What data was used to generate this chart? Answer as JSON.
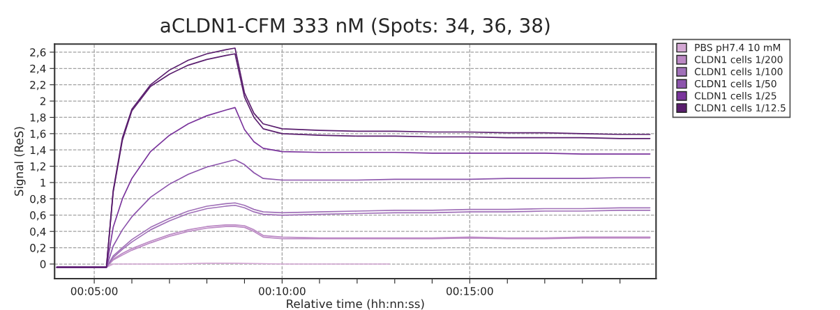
{
  "chart_data": {
    "type": "line",
    "title": "aCLDN1-CFM 333 nM (Spots: 34, 36, 38)",
    "xlabel": "Relative time (hh:nn:ss)",
    "ylabel": "Signal (ReS)",
    "x": [
      0.0667,
      0.0833,
      0.0887,
      0.0917,
      0.0958,
      0.1,
      0.1083,
      0.1167,
      0.125,
      0.1333,
      0.1417,
      0.1458,
      0.15,
      0.1542,
      0.1583,
      0.1667,
      0.1833,
      0.2,
      0.2167,
      0.2333,
      0.25,
      0.2667,
      0.2833,
      0.3,
      0.3167,
      0.33
    ],
    "series": [
      {
        "name": "PBS pH7.4 10 mM",
        "color": "#d4a8d4",
        "x": [
          0.0667,
          0.0833,
          0.0887,
          0.0917,
          0.1,
          0.1167,
          0.1333,
          0.1458,
          0.1667,
          0.1833,
          0.2,
          0.2143
        ],
        "values": [
          -0.04,
          -0.04,
          -0.04,
          0.0,
          0.0,
          0.0,
          0.01,
          0.01,
          0.0,
          0.0,
          0.0,
          0.0
        ]
      },
      {
        "name": "CLDN1 cells 1/200",
        "color": "#bb88c4",
        "values": [
          -0.04,
          -0.04,
          -0.04,
          0.06,
          0.13,
          0.19,
          0.28,
          0.36,
          0.42,
          0.46,
          0.48,
          0.48,
          0.47,
          0.42,
          0.35,
          0.33,
          0.32,
          0.32,
          0.32,
          0.32,
          0.33,
          0.32,
          0.32,
          0.33,
          0.33,
          0.33
        ]
      },
      {
        "color": "#bb88c4",
        "values": [
          -0.04,
          -0.04,
          -0.04,
          0.05,
          0.11,
          0.17,
          0.26,
          0.34,
          0.4,
          0.44,
          0.46,
          0.46,
          0.45,
          0.4,
          0.33,
          0.31,
          0.31,
          0.31,
          0.31,
          0.31,
          0.32,
          0.31,
          0.31,
          0.32,
          0.32,
          0.32
        ]
      },
      {
        "name": "CLDN1 cells 1/100",
        "color": "#a070b8",
        "values": [
          -0.04,
          -0.04,
          -0.04,
          0.1,
          0.2,
          0.3,
          0.45,
          0.56,
          0.65,
          0.71,
          0.74,
          0.75,
          0.72,
          0.67,
          0.64,
          0.63,
          0.64,
          0.65,
          0.66,
          0.66,
          0.67,
          0.67,
          0.68,
          0.68,
          0.69,
          0.69
        ]
      },
      {
        "color": "#a070b8",
        "values": [
          -0.04,
          -0.04,
          -0.04,
          0.08,
          0.18,
          0.27,
          0.42,
          0.53,
          0.62,
          0.68,
          0.71,
          0.72,
          0.69,
          0.64,
          0.61,
          0.6,
          0.61,
          0.62,
          0.63,
          0.63,
          0.64,
          0.64,
          0.65,
          0.65,
          0.66,
          0.66
        ]
      },
      {
        "name": "CLDN1 cells 1/50",
        "color": "#8c54ac",
        "values": [
          -0.04,
          -0.04,
          -0.04,
          0.22,
          0.42,
          0.58,
          0.82,
          0.98,
          1.1,
          1.19,
          1.25,
          1.28,
          1.22,
          1.12,
          1.05,
          1.03,
          1.03,
          1.03,
          1.04,
          1.04,
          1.04,
          1.05,
          1.05,
          1.05,
          1.06,
          1.06
        ]
      },
      {
        "name": "CLDN1 cells 1/25",
        "color": "#7a349c",
        "values": [
          -0.04,
          -0.04,
          -0.04,
          0.45,
          0.8,
          1.05,
          1.38,
          1.58,
          1.72,
          1.82,
          1.89,
          1.92,
          1.65,
          1.5,
          1.42,
          1.38,
          1.37,
          1.37,
          1.37,
          1.36,
          1.36,
          1.36,
          1.36,
          1.35,
          1.35,
          1.35
        ]
      },
      {
        "name": "CLDN1 cells 1/12.5",
        "color": "#5a1e6e",
        "values": [
          -0.04,
          -0.04,
          -0.04,
          0.9,
          1.55,
          1.9,
          2.2,
          2.38,
          2.5,
          2.58,
          2.63,
          2.65,
          2.1,
          1.85,
          1.72,
          1.66,
          1.64,
          1.63,
          1.63,
          1.62,
          1.62,
          1.61,
          1.61,
          1.6,
          1.59,
          1.59
        ]
      },
      {
        "color": "#5a1e6e",
        "values": [
          -0.04,
          -0.04,
          -0.04,
          0.88,
          1.52,
          1.88,
          2.18,
          2.33,
          2.44,
          2.51,
          2.56,
          2.58,
          2.05,
          1.8,
          1.66,
          1.6,
          1.58,
          1.57,
          1.57,
          1.56,
          1.56,
          1.55,
          1.55,
          1.55,
          1.54,
          1.54
        ]
      }
    ],
    "xlim": [
      0.0657,
      0.3327
    ],
    "xticks": [
      {
        "value": 0.0833,
        "label": "00:05:00"
      },
      {
        "value": 0.1,
        "label": null
      },
      {
        "value": 0.1167,
        "label": null
      },
      {
        "value": 0.1333,
        "label": null
      },
      {
        "value": 0.15,
        "label": null
      },
      {
        "value": 0.1667,
        "label": "00:10:00"
      },
      {
        "value": 0.1833,
        "label": null
      },
      {
        "value": 0.2,
        "label": null
      },
      {
        "value": 0.2167,
        "label": null
      },
      {
        "value": 0.2333,
        "label": null
      },
      {
        "value": 0.25,
        "label": "00:15:00"
      },
      {
        "value": 0.2667,
        "label": null
      },
      {
        "value": 0.2833,
        "label": null
      },
      {
        "value": 0.3,
        "label": null
      },
      {
        "value": 0.3167,
        "label": null
      }
    ],
    "ylim": [
      -0.18,
      2.7
    ],
    "yticks": [
      0,
      {
        "value": 0.2,
        "label": "0,2"
      },
      {
        "value": 0.4,
        "label": "0,4"
      },
      {
        "value": 0.6,
        "label": "0,6"
      },
      {
        "value": 0.8,
        "label": "0,8"
      },
      1,
      {
        "value": 1.2,
        "label": "1,2"
      },
      {
        "value": 1.4,
        "label": "1,4"
      },
      {
        "value": 1.6,
        "label": "1,6"
      },
      {
        "value": 1.8,
        "label": "1,8"
      },
      2,
      {
        "value": 2.2,
        "label": "2,2"
      },
      {
        "value": 2.4,
        "label": "2,4"
      },
      {
        "value": 2.6,
        "label": "2,6"
      }
    ],
    "grid": true,
    "legend": "top right",
    "marker": "none",
    "line_style": "solid"
  }
}
